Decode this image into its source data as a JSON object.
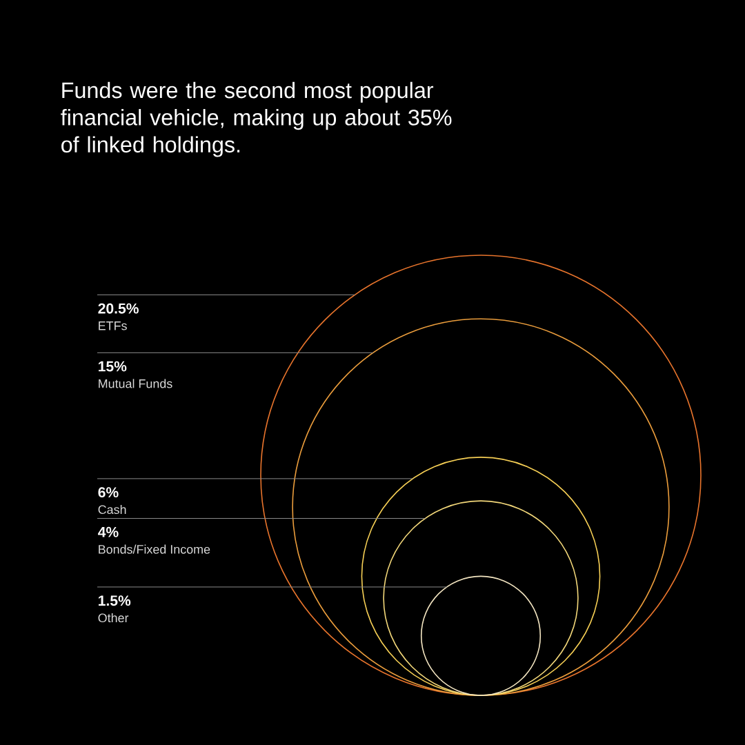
{
  "chart_data": {
    "type": "other",
    "title": "Funds were the second most popular financial vehicle, making up about 35% of linked holdings.",
    "categories": [
      "ETFs",
      "Mutual Funds",
      "Cash",
      "Bonds/Fixed Income",
      "Other"
    ],
    "values": [
      20.5,
      15,
      6,
      4,
      1.5
    ],
    "value_labels": [
      "20.5%",
      "15%",
      "6%",
      "4%",
      "1.5%"
    ],
    "colors": [
      "#e8742c",
      "#eb9d3c",
      "#f6cf55",
      "#f3d87a",
      "#f4e6c2"
    ]
  }
}
